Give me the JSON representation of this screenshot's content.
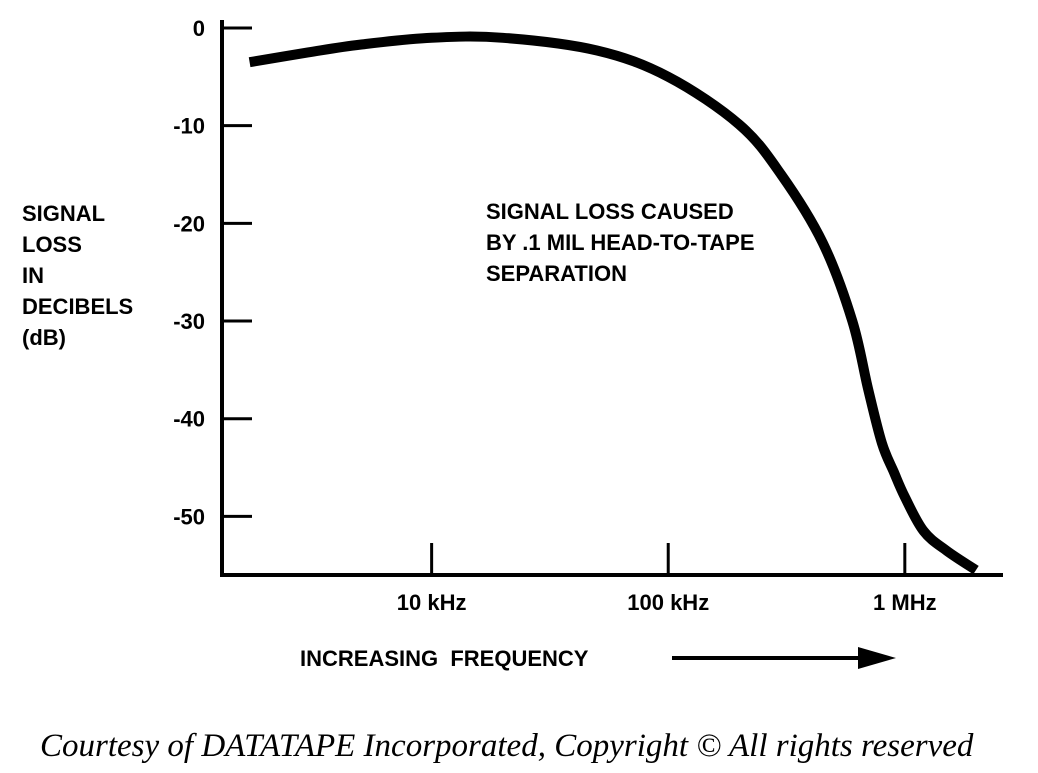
{
  "chart_data": {
    "type": "line",
    "title": "",
    "annotation": [
      "SIGNAL LOSS CAUSED",
      "BY .1 MIL HEAD-TO-TAPE",
      "SEPARATION"
    ],
    "ylabel": [
      "SIGNAL",
      "LOSS",
      "IN",
      "DECIBELS",
      "(dB)"
    ],
    "xlabel": "INCREASING  FREQUENCY",
    "x_scale": "log",
    "x_ticks": [
      {
        "value": 10000,
        "label": "10 kHz"
      },
      {
        "value": 100000,
        "label": "100 kHz"
      },
      {
        "value": 1000000,
        "label": "1 MHz"
      }
    ],
    "y_ticks": [
      {
        "value": 0,
        "label": "0"
      },
      {
        "value": -10,
        "label": "-10"
      },
      {
        "value": -20,
        "label": "-20"
      },
      {
        "value": -30,
        "label": "-30"
      },
      {
        "value": -40,
        "label": "-40"
      },
      {
        "value": -50,
        "label": "-50"
      }
    ],
    "xlim": [
      1300,
      2600000
    ],
    "ylim": [
      -56,
      0
    ],
    "grid": false,
    "series": [
      {
        "x": [
          1700,
          3000,
          5000,
          10000,
          20000,
          50000,
          100000,
          200000,
          300000,
          450000,
          600000,
          700000,
          800000,
          900000,
          1000000,
          1200000,
          1500000,
          2000000
        ],
        "y": [
          -3.5,
          -2.5,
          -1.7,
          -1,
          -1,
          -2.3,
          -5,
          -9.9,
          -15,
          -22,
          -30,
          -37,
          -42.5,
          -45.5,
          -48,
          -51.5,
          -53.5,
          -55.5
        ]
      }
    ]
  },
  "caption": "Courtesy of DATATAPE Incorporated,  Copyright ©  All rights reserved"
}
